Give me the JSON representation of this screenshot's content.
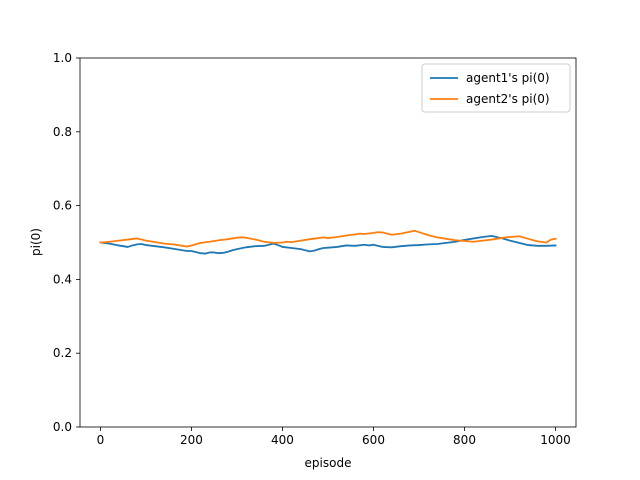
{
  "chart_data": {
    "type": "line",
    "title": "",
    "xlabel": "episode",
    "ylabel": "pi(0)",
    "xlim": [
      -45,
      1045
    ],
    "ylim": [
      0.0,
      1.0
    ],
    "xticks": [
      0,
      200,
      400,
      600,
      800,
      1000
    ],
    "yticks": [
      0.0,
      0.2,
      0.4,
      0.6,
      0.8,
      1.0
    ],
    "xtick_labels": [
      "0",
      "200",
      "400",
      "600",
      "800",
      "1000"
    ],
    "ytick_labels": [
      "0.0",
      "0.2",
      "0.4",
      "0.6",
      "0.8",
      "1.0"
    ],
    "grid": false,
    "legend_position": "top-right",
    "series": [
      {
        "name": "agent1's pi(0)",
        "color": "#1f77b4",
        "x": [
          0,
          20,
          40,
          60,
          70,
          80,
          90,
          100,
          120,
          140,
          160,
          180,
          190,
          200,
          210,
          220,
          230,
          240,
          250,
          260,
          270,
          280,
          290,
          300,
          320,
          340,
          360,
          370,
          380,
          390,
          400,
          420,
          440,
          460,
          470,
          480,
          490,
          500,
          520,
          540,
          560,
          580,
          590,
          600,
          610,
          620,
          640,
          660,
          680,
          700,
          720,
          740,
          760,
          780,
          800,
          820,
          840,
          860,
          880,
          900,
          920,
          940,
          960,
          980,
          1000
        ],
        "y": [
          0.5,
          0.497,
          0.492,
          0.488,
          0.492,
          0.495,
          0.496,
          0.493,
          0.49,
          0.487,
          0.483,
          0.479,
          0.477,
          0.477,
          0.474,
          0.471,
          0.47,
          0.473,
          0.473,
          0.471,
          0.472,
          0.475,
          0.479,
          0.482,
          0.487,
          0.49,
          0.491,
          0.494,
          0.497,
          0.493,
          0.488,
          0.485,
          0.482,
          0.476,
          0.478,
          0.482,
          0.485,
          0.486,
          0.488,
          0.492,
          0.491,
          0.494,
          0.492,
          0.494,
          0.491,
          0.488,
          0.487,
          0.49,
          0.492,
          0.493,
          0.495,
          0.496,
          0.499,
          0.502,
          0.507,
          0.511,
          0.515,
          0.518,
          0.512,
          0.505,
          0.499,
          0.493,
          0.491,
          0.491,
          0.492
        ]
      },
      {
        "name": "agent2's pi(0)",
        "color": "#ff7f0e",
        "x": [
          0,
          20,
          40,
          60,
          80,
          90,
          100,
          120,
          140,
          160,
          180,
          190,
          200,
          220,
          240,
          260,
          280,
          300,
          310,
          320,
          340,
          360,
          380,
          400,
          410,
          420,
          440,
          460,
          480,
          490,
          500,
          520,
          540,
          560,
          570,
          580,
          600,
          610,
          620,
          640,
          660,
          680,
          690,
          700,
          720,
          740,
          760,
          780,
          800,
          820,
          840,
          860,
          880,
          900,
          920,
          940,
          960,
          980,
          990,
          1000
        ],
        "y": [
          0.5,
          0.502,
          0.505,
          0.508,
          0.511,
          0.508,
          0.505,
          0.501,
          0.497,
          0.495,
          0.491,
          0.489,
          0.492,
          0.499,
          0.502,
          0.506,
          0.509,
          0.513,
          0.514,
          0.513,
          0.508,
          0.502,
          0.499,
          0.5,
          0.502,
          0.501,
          0.505,
          0.509,
          0.512,
          0.514,
          0.512,
          0.515,
          0.519,
          0.522,
          0.524,
          0.523,
          0.526,
          0.528,
          0.527,
          0.521,
          0.524,
          0.529,
          0.532,
          0.528,
          0.52,
          0.514,
          0.51,
          0.506,
          0.504,
          0.502,
          0.505,
          0.508,
          0.512,
          0.515,
          0.517,
          0.51,
          0.503,
          0.5,
          0.508,
          0.51
        ]
      }
    ]
  }
}
